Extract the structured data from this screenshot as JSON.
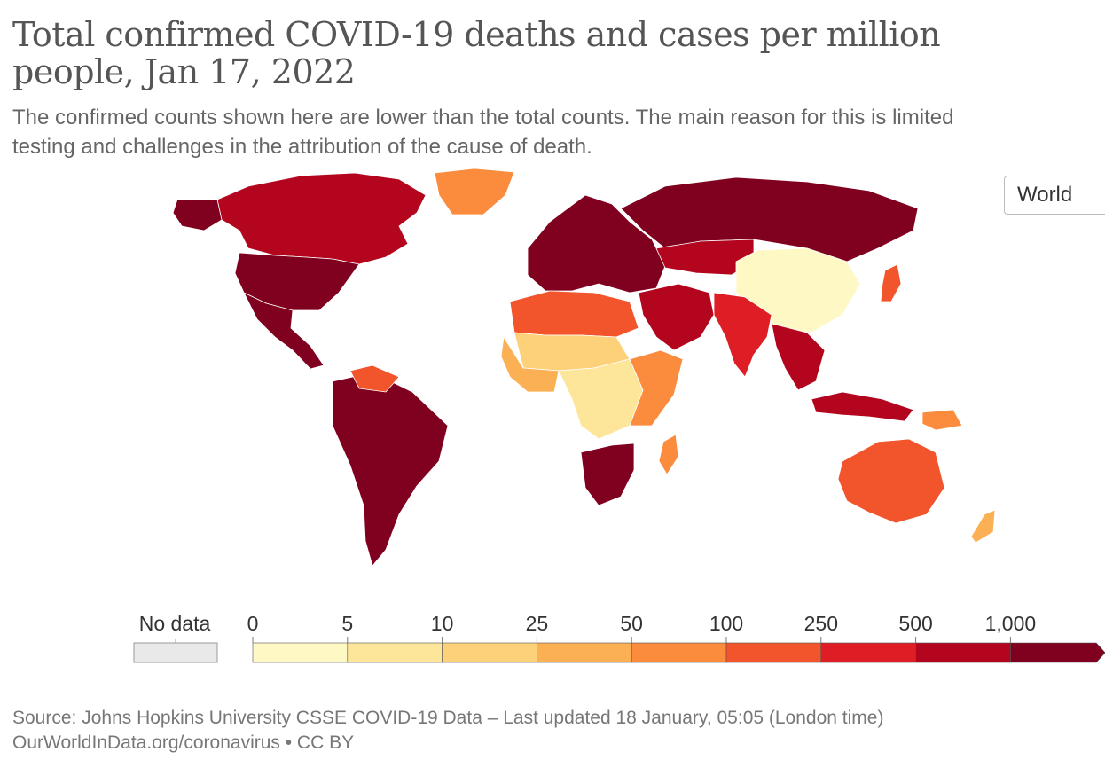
{
  "header": {
    "title": "Total confirmed COVID-19 deaths and cases per million people, Jan 17, 2022",
    "subtitle_line1": "The confirmed counts shown here are lower than the total counts. The main reason for this is limited",
    "subtitle_line2": "testing and challenges in the attribution of the cause of death."
  },
  "controls": {
    "region_selector": "World"
  },
  "legend": {
    "no_data_label": "No data",
    "no_data_color": "#e9e9e9",
    "tick_labels": [
      "0",
      "5",
      "10",
      "25",
      "50",
      "100",
      "250",
      "500",
      "1,000"
    ],
    "bin_colors": [
      "#fef8c5",
      "#fde69a",
      "#fdd17a",
      "#fcb054",
      "#fb8b3d",
      "#f2542c",
      "#de1e24",
      "#b4051f",
      "#80001f"
    ]
  },
  "map_regions": [
    {
      "name": "North America",
      "color": "#b4051f"
    },
    {
      "name": "United States",
      "color": "#80001f"
    },
    {
      "name": "Alaska",
      "color": "#80001f"
    },
    {
      "name": "Mexico & Central America",
      "color": "#80001f"
    },
    {
      "name": "Greenland",
      "color": "#fb8b3d"
    },
    {
      "name": "South America",
      "color": "#80001f"
    },
    {
      "name": "Venezuela",
      "color": "#f2542c"
    },
    {
      "name": "Europe",
      "color": "#80001f"
    },
    {
      "name": "Russia",
      "color": "#80001f"
    },
    {
      "name": "Kazakhstan",
      "color": "#b4051f"
    },
    {
      "name": "China",
      "color": "#fef8c5"
    },
    {
      "name": "Japan",
      "color": "#f2542c"
    },
    {
      "name": "India",
      "color": "#de1e24"
    },
    {
      "name": "Middle East",
      "color": "#b4051f"
    },
    {
      "name": "Southeast Asia",
      "color": "#b4051f"
    },
    {
      "name": "North Africa",
      "color": "#f2542c"
    },
    {
      "name": "Sahel",
      "color": "#fdd17a"
    },
    {
      "name": "West Africa",
      "color": "#fcb054"
    },
    {
      "name": "Central Africa",
      "color": "#fde69a"
    },
    {
      "name": "East Africa",
      "color": "#fb8b3d"
    },
    {
      "name": "Southern Africa",
      "color": "#80001f"
    },
    {
      "name": "Madagascar",
      "color": "#fb8b3d"
    },
    {
      "name": "Australia",
      "color": "#f2542c"
    },
    {
      "name": "New Zealand",
      "color": "#fcb054"
    },
    {
      "name": "Papua New Guinea",
      "color": "#fb8b3d"
    },
    {
      "name": "Indonesia",
      "color": "#b4051f"
    }
  ],
  "footer": {
    "source": "Source: Johns Hopkins University CSSE COVID-19 Data – Last updated 18 January, 05:05 (London time)",
    "attribution": "OurWorldInData.org/coronavirus • CC BY"
  }
}
